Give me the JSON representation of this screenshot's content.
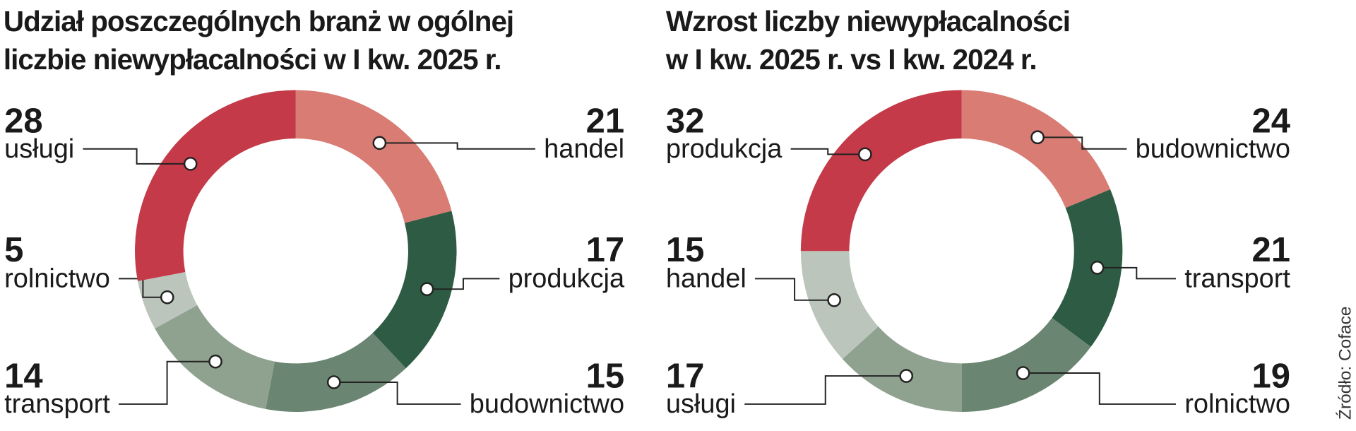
{
  "chart_data": [
    {
      "type": "pie",
      "donut": true,
      "title": "Udział poszczególnych branż w ogólnej\nliczbie niewypłacalności w I kw. 2025 r.",
      "categories": [
        "handel",
        "produkcja",
        "budownictwo",
        "transport",
        "rolnictwo",
        "usługi"
      ],
      "values": [
        21,
        17,
        15,
        14,
        5,
        28
      ],
      "colors": [
        "#d87c74",
        "#2e5b43",
        "#6a8571",
        "#8fa18f",
        "#bcc5bb",
        "#c43a48"
      ]
    },
    {
      "type": "pie",
      "donut": true,
      "title": "Wzrost liczby niewypłacalności\nw I kw. 2025 r. vs I kw. 2024 r.",
      "categories": [
        "budownictwo",
        "transport",
        "rolnictwo",
        "usługi",
        "handel",
        "produkcja"
      ],
      "values": [
        24,
        21,
        19,
        17,
        15,
        32
      ],
      "colors": [
        "#d87c74",
        "#2e5b43",
        "#6a8571",
        "#8fa18f",
        "#bcc5bb",
        "#c43a48"
      ]
    }
  ],
  "source": "Źródło: Coface"
}
